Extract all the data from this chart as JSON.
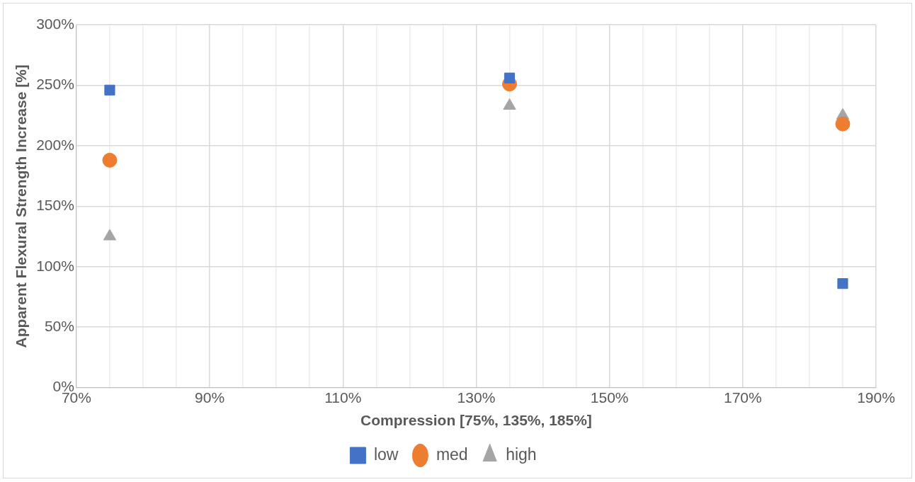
{
  "chart_data": {
    "type": "scatter",
    "xlabel": "Compression [75%, 135%, 185%]",
    "ylabel": "Apparent Flexural Strength Increase [%]",
    "x": [
      75,
      135,
      185
    ],
    "series": [
      {
        "name": "low",
        "color": "#4472c4",
        "marker": "square",
        "values": [
          246,
          256,
          86
        ]
      },
      {
        "name": "med",
        "color": "#ed7d31",
        "marker": "circle",
        "values": [
          188,
          251,
          218
        ]
      },
      {
        "name": "high",
        "color": "#a5a5a5",
        "marker": "triangle",
        "values": [
          125,
          233,
          225
        ]
      }
    ],
    "xlim": [
      70,
      190
    ],
    "xticks": [
      {
        "value": 70,
        "label": "70%"
      },
      {
        "value": 75,
        "label": null
      },
      {
        "value": 80,
        "label": null
      },
      {
        "value": 85,
        "label": null
      },
      {
        "value": 90,
        "label": "90%"
      },
      {
        "value": 95,
        "label": null
      },
      {
        "value": 100,
        "label": null
      },
      {
        "value": 105,
        "label": null
      },
      {
        "value": 110,
        "label": "110%"
      },
      {
        "value": 115,
        "label": null
      },
      {
        "value": 120,
        "label": null
      },
      {
        "value": 125,
        "label": null
      },
      {
        "value": 130,
        "label": "130%"
      },
      {
        "value": 135,
        "label": null
      },
      {
        "value": 140,
        "label": null
      },
      {
        "value": 145,
        "label": null
      },
      {
        "value": 150,
        "label": "150%"
      },
      {
        "value": 155,
        "label": null
      },
      {
        "value": 160,
        "label": null
      },
      {
        "value": 165,
        "label": null
      },
      {
        "value": 170,
        "label": "170%"
      },
      {
        "value": 175,
        "label": null
      },
      {
        "value": 180,
        "label": null
      },
      {
        "value": 185,
        "label": null
      },
      {
        "value": 190,
        "label": "190%"
      }
    ],
    "ylim": [
      0,
      300
    ],
    "yticks": [
      {
        "value": 0,
        "label": "0%"
      },
      {
        "value": 50,
        "label": "50%"
      },
      {
        "value": 100,
        "label": "100%"
      },
      {
        "value": 150,
        "label": "150%"
      },
      {
        "value": 200,
        "label": "200%"
      },
      {
        "value": 250,
        "label": "250%"
      },
      {
        "value": 300,
        "label": "300%"
      }
    ],
    "grid": true,
    "legend": "bottom"
  }
}
